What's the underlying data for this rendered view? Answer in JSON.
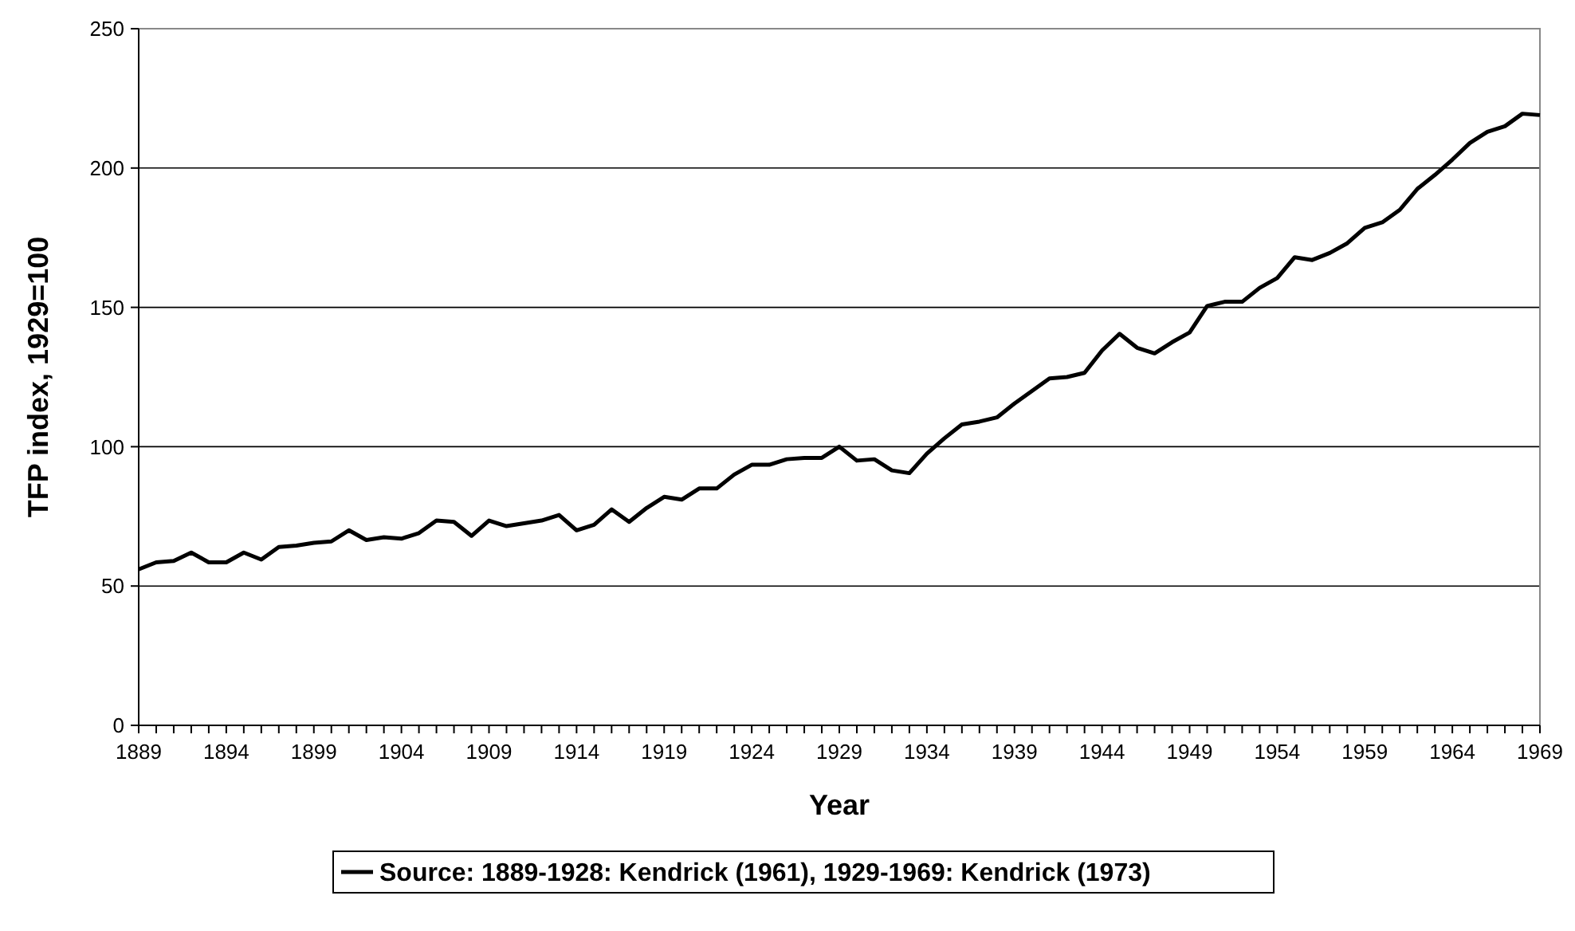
{
  "chart_data": {
    "type": "line",
    "xlabel": "Year",
    "ylabel": "TFP index, 1929=100",
    "x": [
      1889,
      1890,
      1891,
      1892,
      1893,
      1894,
      1895,
      1896,
      1897,
      1898,
      1899,
      1900,
      1901,
      1902,
      1903,
      1904,
      1905,
      1906,
      1907,
      1908,
      1909,
      1910,
      1911,
      1912,
      1913,
      1914,
      1915,
      1916,
      1917,
      1918,
      1919,
      1920,
      1921,
      1922,
      1923,
      1924,
      1925,
      1926,
      1927,
      1928,
      1929,
      1930,
      1931,
      1932,
      1933,
      1934,
      1935,
      1936,
      1937,
      1938,
      1939,
      1940,
      1941,
      1942,
      1943,
      1944,
      1945,
      1946,
      1947,
      1948,
      1949,
      1950,
      1951,
      1952,
      1953,
      1954,
      1955,
      1956,
      1957,
      1958,
      1959,
      1960,
      1961,
      1962,
      1963,
      1964,
      1965,
      1966,
      1967,
      1968,
      1969
    ],
    "series": [
      {
        "name": "Source: 1889-1928: Kendrick (1961), 1929-1969: Kendrick (1973)",
        "color": "#000000",
        "values": [
          56,
          58.5,
          59,
          62,
          58.5,
          58.5,
          62,
          59.5,
          64,
          64.5,
          65.5,
          66,
          70,
          66.5,
          67.5,
          67,
          69,
          73.5,
          73,
          68,
          73.5,
          71.5,
          72.5,
          73.5,
          75.5,
          70,
          72,
          77.5,
          73,
          78,
          82,
          81,
          85,
          85,
          90,
          93.5,
          93.5,
          95.5,
          96,
          96,
          100,
          95,
          95.5,
          91.5,
          90.5,
          97.5,
          103,
          108,
          109,
          110.5,
          115.5,
          120,
          124.5,
          125,
          126.5,
          134.5,
          140.5,
          135.5,
          133.5,
          137.5,
          141,
          150.5,
          152,
          152,
          157,
          160.5,
          168,
          167,
          169.5,
          173,
          178.5,
          180.5,
          185,
          192.5,
          197.5,
          203,
          209,
          213,
          215,
          219.5,
          219
        ]
      }
    ],
    "xlim": [
      1889,
      1969
    ],
    "xticks": [
      1889,
      1894,
      1899,
      1904,
      1909,
      1914,
      1919,
      1924,
      1929,
      1934,
      1939,
      1944,
      1949,
      1954,
      1959,
      1964,
      1969
    ],
    "ylim": [
      0,
      250
    ],
    "yticks": [
      0,
      50,
      100,
      150,
      200,
      250
    ],
    "grid": "y",
    "legend": "bottom",
    "marker": "none",
    "line_style": "solid"
  }
}
